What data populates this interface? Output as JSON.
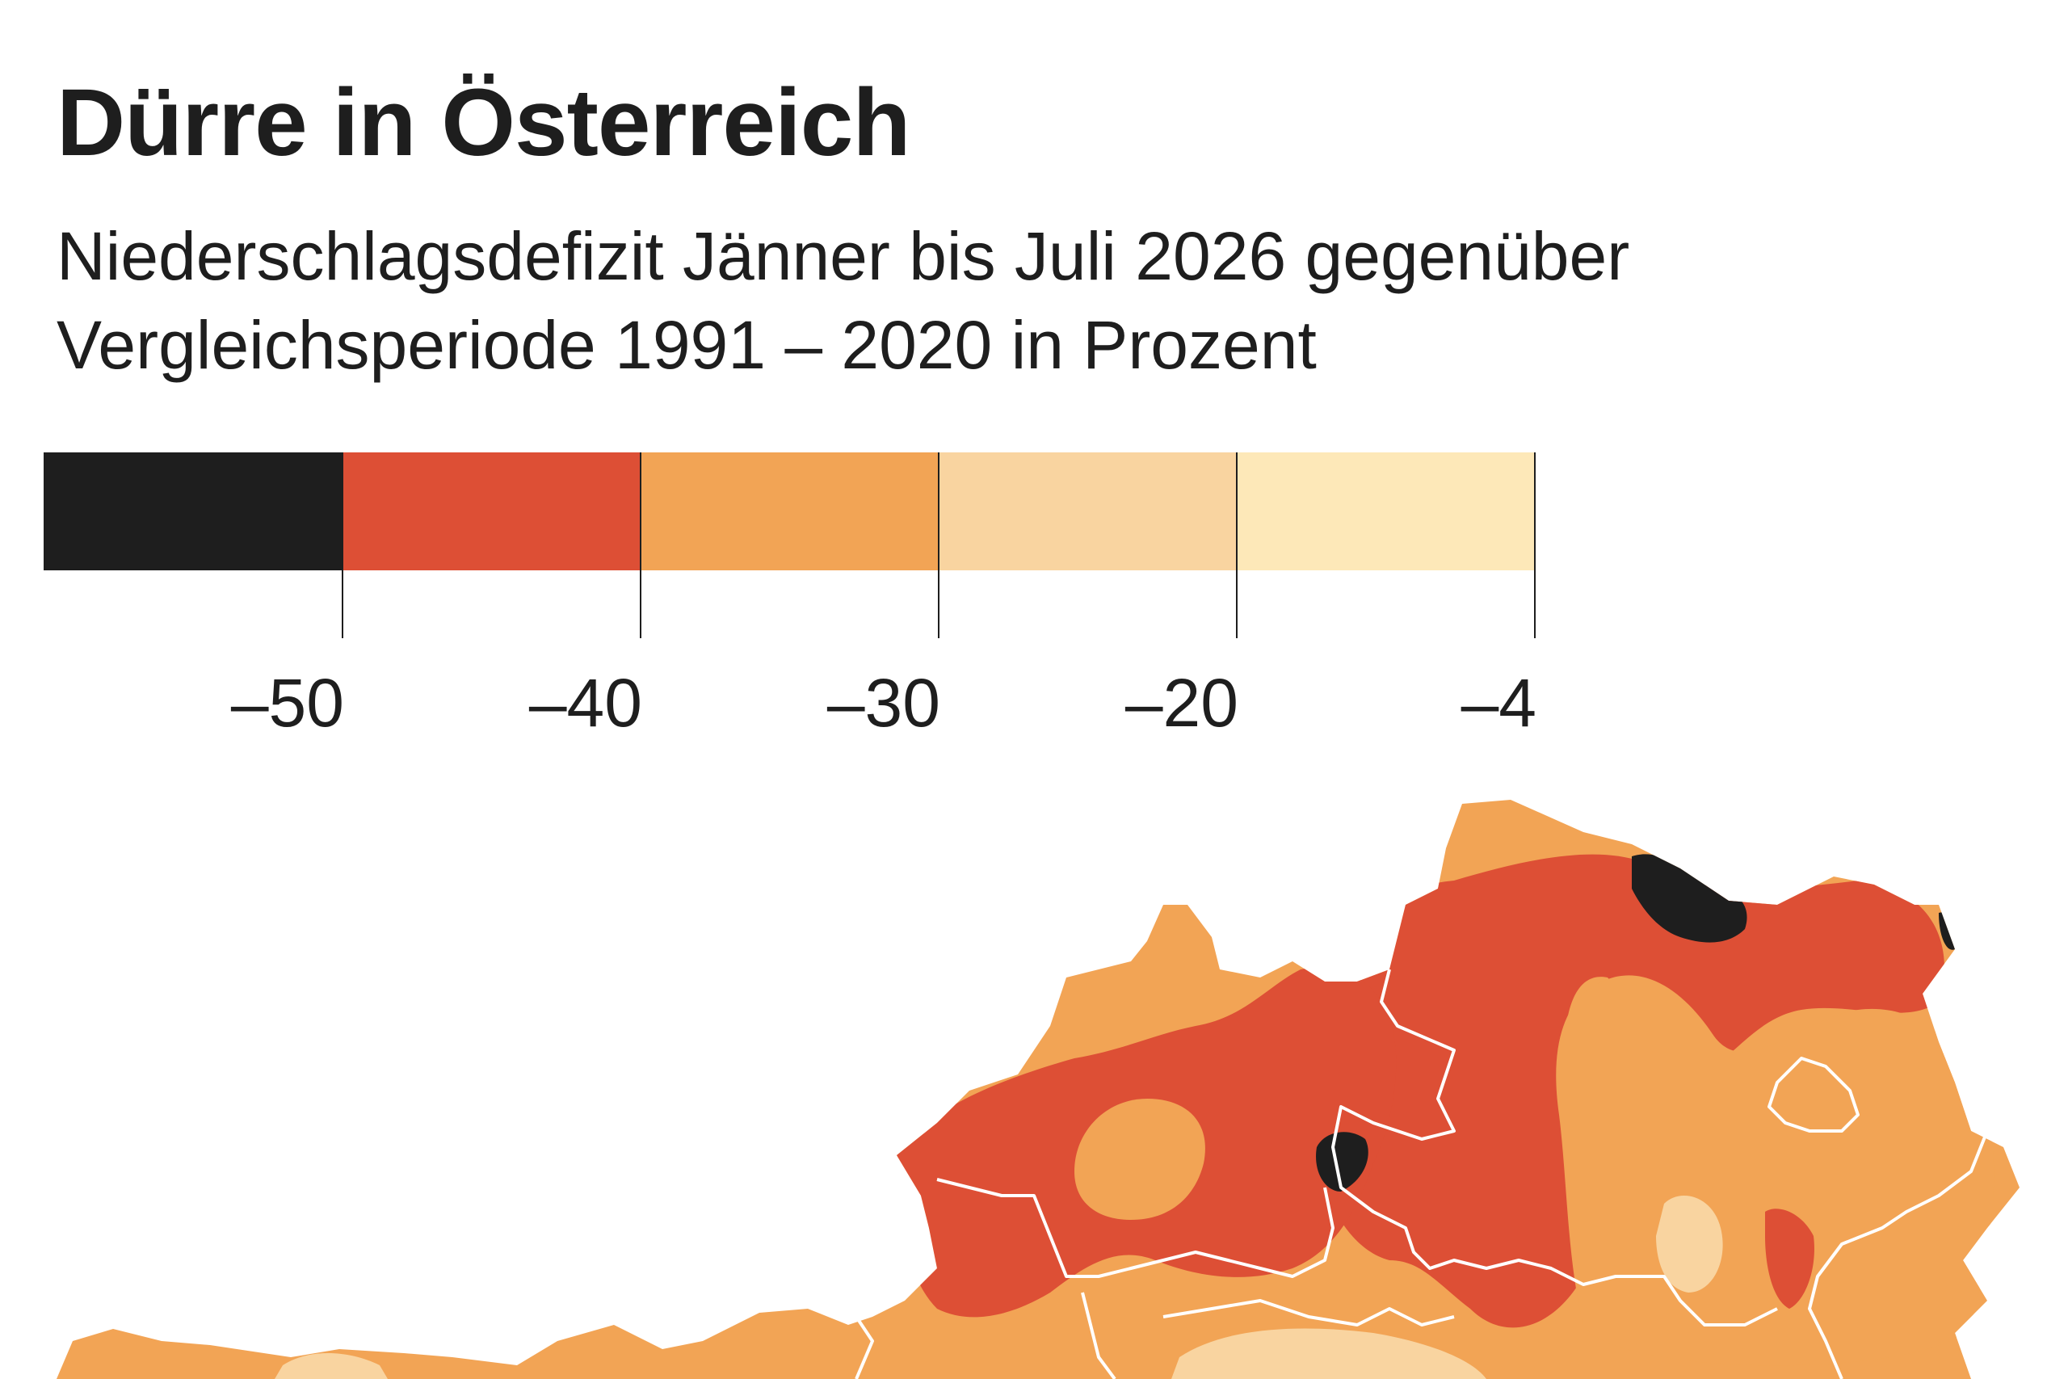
{
  "title": "Dürre in Österreich",
  "subtitle_line1": "Niederschlagsdefizit Jänner bis Juli 2026 gegenüber",
  "subtitle_line2": "Vergleichsperiode 1991 – 2020 in Prozent",
  "legend": {
    "classes": [
      {
        "color": "#1e1e1e",
        "range": "< −50"
      },
      {
        "color": "#dd4f35",
        "range": "−50 bis −40"
      },
      {
        "color": "#f2a455",
        "range": "−40 bis −30"
      },
      {
        "color": "#f9d4a0",
        "range": "−30 bis −20"
      },
      {
        "color": "#fde8b8",
        "range": "−20 bis −4"
      }
    ],
    "breaks": [
      "–50",
      "–40",
      "–30",
      "–20",
      "–4"
    ]
  },
  "colors": {
    "extreme": "#1e1e1e",
    "severe": "#dd4f35",
    "moderate": "#f2a455",
    "light": "#f9d4a0",
    "minimal": "#fde8b8",
    "border": "#ffffff"
  }
}
